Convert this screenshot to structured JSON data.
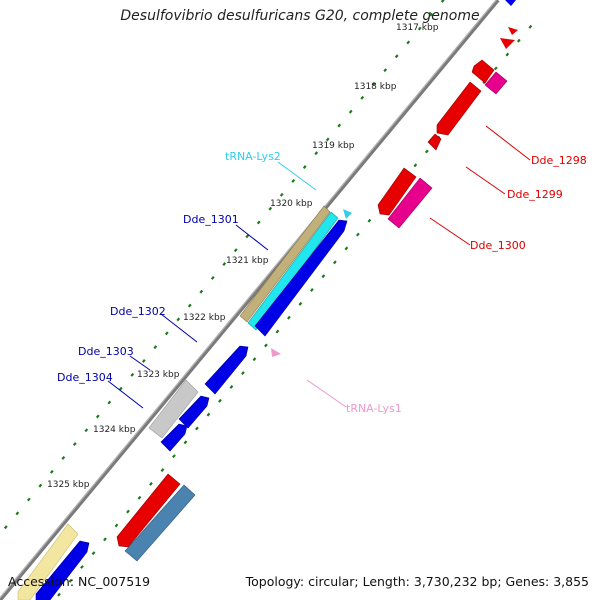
{
  "title": "Desulfovibrio desulfuricans G20, complete genome",
  "footer": {
    "accession": "Accession: NC_007519",
    "stats": "Topology: circular; Length: 3,730,232 bp; Genes: 3,855"
  },
  "colors": {
    "backbone": "#7a7a7a",
    "ticks": "#1a7a1a",
    "forward_cds": "#0000e6",
    "reverse_cds": "#e60000",
    "pseudo_gene": "#e6008c",
    "trna": "#33ccee",
    "trna_reverse": "#ee99cc",
    "label_forward": "#0000aa",
    "label_reverse": "#dd0000"
  },
  "kbp_labels": [
    "1317 kbp",
    "1318 kbp",
    "1319 kbp",
    "1320 kbp",
    "1321 kbp",
    "1322 kbp",
    "1323 kbp",
    "1324 kbp",
    "1325 kbp"
  ],
  "features": {
    "tRNA-Lys2": "tRNA-Lys2",
    "Dde_1301": "Dde_1301",
    "Dde_1302": "Dde_1302",
    "Dde_1303": "Dde_1303",
    "Dde_1304": "Dde_1304",
    "Dde_1298": "Dde_1298",
    "Dde_1299": "Dde_1299",
    "Dde_1300": "Dde_1300",
    "tRNA-Lys1": "tRNA-Lys1"
  }
}
